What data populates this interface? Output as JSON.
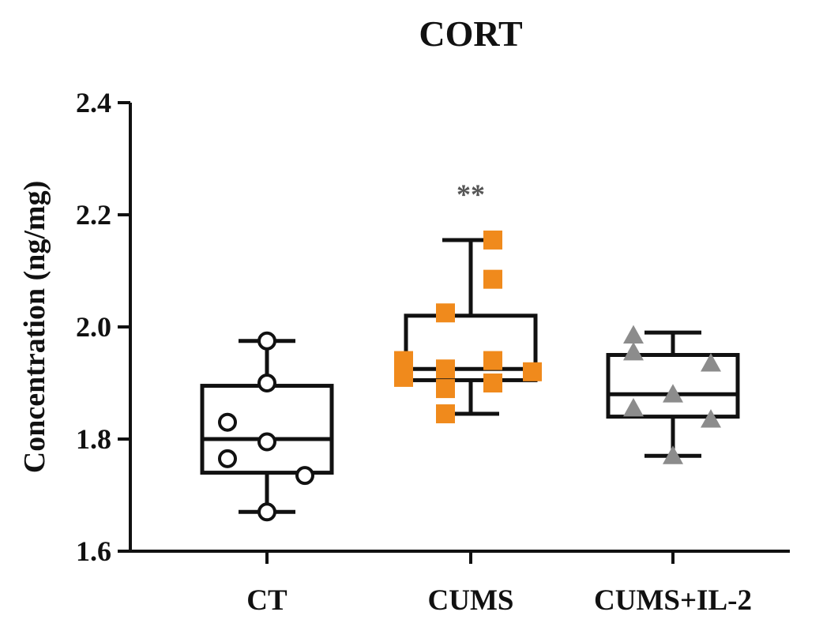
{
  "chart_data": {
    "type": "box",
    "title": "CORT",
    "xlabel": "",
    "ylabel": "Concentration (ng/mg)",
    "ylim": [
      1.6,
      2.4
    ],
    "yticks": [
      "1.6",
      "1.8",
      "2.0",
      "2.2",
      "2.4"
    ],
    "ytick_values": [
      1.6,
      1.8,
      2.0,
      2.2,
      2.4
    ],
    "categories": [
      "CT",
      "CUMS",
      "CUMS+IL-2"
    ],
    "grid": false,
    "groups": [
      {
        "label": "CT",
        "marker": "open-circle",
        "color": "#111111",
        "min": 1.67,
        "q1": 1.74,
        "median": 1.8,
        "q3": 1.895,
        "max": 1.975,
        "points": [
          1.975,
          1.9,
          1.83,
          1.795,
          1.765,
          1.735,
          1.67
        ],
        "annotation": ""
      },
      {
        "label": "CUMS",
        "marker": "filled-square",
        "color": "#f08a1c",
        "min": 1.845,
        "q1": 1.905,
        "median": 1.925,
        "q3": 2.02,
        "max": 2.155,
        "points": [
          2.155,
          2.085,
          2.025,
          1.94,
          1.94,
          1.925,
          1.92,
          1.91,
          1.89,
          1.9,
          1.845
        ],
        "annotation": "**"
      },
      {
        "label": "CUMS+IL-2",
        "marker": "filled-triangle",
        "color": "#8c8c8c",
        "min": 1.77,
        "q1": 1.84,
        "median": 1.88,
        "q3": 1.95,
        "max": 1.99,
        "points": [
          1.985,
          1.955,
          1.935,
          1.88,
          1.855,
          1.835,
          1.77
        ],
        "annotation": ""
      }
    ]
  }
}
